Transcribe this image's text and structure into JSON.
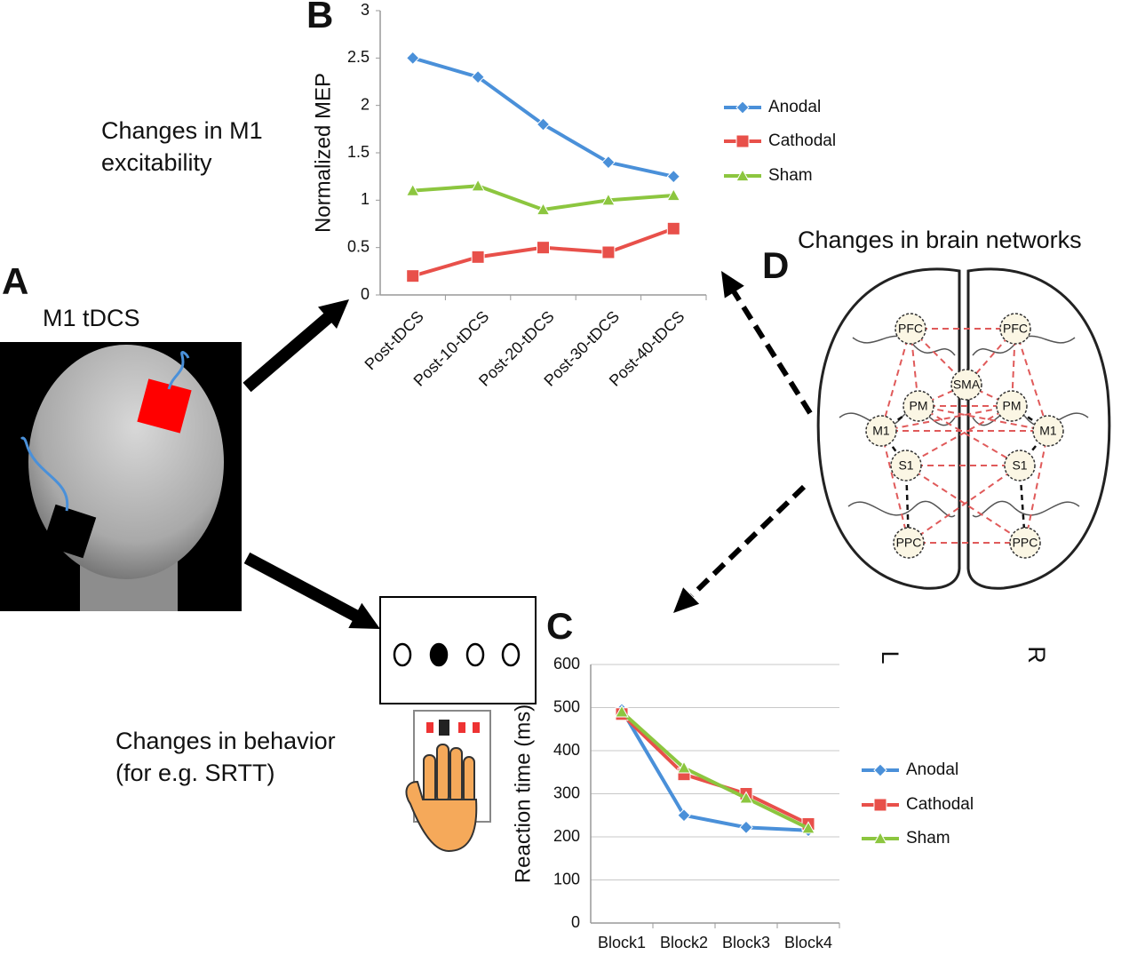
{
  "panel_a": {
    "letter": "A",
    "label": "M1 tDCS"
  },
  "panel_b": {
    "letter": "B",
    "caption": [
      "Changes in M1",
      "excitability"
    ]
  },
  "panel_c": {
    "letter": "C",
    "caption": [
      "Changes in behavior",
      "(for e.g. SRTT)"
    ]
  },
  "panel_d": {
    "letter": "D",
    "caption": "Changes in brain networks",
    "nodes": [
      "PFC",
      "PFC",
      "SMA",
      "PM",
      "PM",
      "M1",
      "M1",
      "S1",
      "S1",
      "PPC",
      "PPC"
    ],
    "sides": [
      "L",
      "R"
    ]
  },
  "chart_data": [
    {
      "type": "line",
      "y_label": "Normalized MEP",
      "categories": [
        "Post-tDCS",
        "Post-10-tDCS",
        "Post-20-tDCS",
        "Post-30-tDCS",
        "Post-40-tDCS"
      ],
      "series": [
        {
          "name": "Anodal",
          "color": "#4a90d9",
          "marker": "diamond",
          "values": [
            2.5,
            2.3,
            1.8,
            1.4,
            1.25
          ]
        },
        {
          "name": "Cathodal",
          "color": "#e8504a",
          "marker": "square",
          "values": [
            0.2,
            0.4,
            0.5,
            0.45,
            0.7
          ]
        },
        {
          "name": "Sham",
          "color": "#8cc63f",
          "marker": "triangle",
          "values": [
            1.1,
            1.15,
            0.9,
            1.0,
            1.05
          ]
        }
      ],
      "ylim": [
        0,
        3
      ],
      "yticks": [
        0,
        0.5,
        1,
        1.5,
        2,
        2.5,
        3
      ],
      "grid": false,
      "legend": "right"
    },
    {
      "type": "line",
      "y_label": "Reaction time (ms)",
      "categories": [
        "Block1",
        "Block2",
        "Block3",
        "Block4"
      ],
      "series": [
        {
          "name": "Anodal",
          "color": "#4a90d9",
          "marker": "diamond",
          "values": [
            495,
            250,
            222,
            215
          ]
        },
        {
          "name": "Cathodal",
          "color": "#e8504a",
          "marker": "square",
          "values": [
            485,
            345,
            300,
            230
          ]
        },
        {
          "name": "Sham",
          "color": "#8cc63f",
          "marker": "triangle",
          "values": [
            490,
            360,
            290,
            220
          ]
        }
      ],
      "ylim": [
        0,
        600
      ],
      "yticks": [
        0,
        100,
        200,
        300,
        400,
        500,
        600
      ],
      "grid": true,
      "legend": "right"
    }
  ]
}
